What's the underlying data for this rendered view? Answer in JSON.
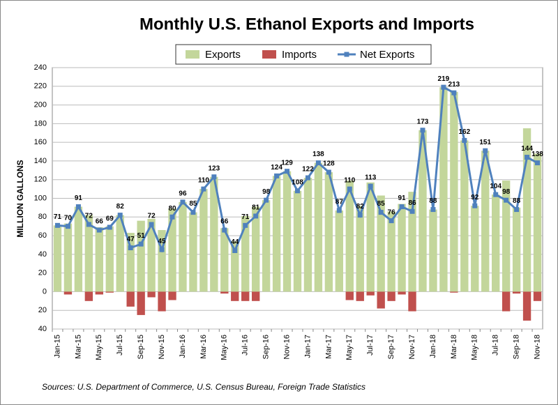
{
  "chart_data": {
    "type": "bar",
    "title": "Monthly U.S. Ethanol Exports and Imports",
    "y_label": "MILLION GALLONS",
    "source": "Sources: U.S. Department of Commerce, U.S. Census Bureau, Foreign Trade Statistics",
    "categories": [
      "Jan-15",
      null,
      "Mar-15",
      null,
      "May-15",
      null,
      "Jul-15",
      null,
      "Sep-15",
      null,
      "Nov-15",
      null,
      "Jan-16",
      null,
      "Mar-16",
      null,
      "May-16",
      null,
      "Jul-16",
      null,
      "Sep-16",
      null,
      "Nov-16",
      null,
      "Jan-17",
      null,
      "Mar-17",
      null,
      "May-17",
      null,
      "Jul-17",
      null,
      "Sep-17",
      null,
      "Nov-17",
      null,
      "Jan-18",
      null,
      "Mar-18",
      null,
      "May-18",
      null,
      "Jul-18",
      null,
      "Sep-18",
      null,
      "Nov-18"
    ],
    "series": [
      {
        "name": "Exports",
        "type": "bar",
        "color": "#c3d69b",
        "values": [
          71,
          73,
          91,
          82,
          69,
          70,
          82,
          63,
          76,
          78,
          66,
          89,
          96,
          85,
          110,
          123,
          68,
          54,
          81,
          91,
          98,
          124,
          129,
          108,
          122,
          138,
          128,
          87,
          119,
          92,
          117,
          103,
          86,
          94,
          107,
          173,
          88,
          219,
          214,
          162,
          92,
          151,
          104,
          119,
          90,
          175,
          148
        ]
      },
      {
        "name": "Imports",
        "type": "bar",
        "color": "#c0504d",
        "values": [
          0,
          -3,
          0,
          -10,
          -3,
          -1,
          0,
          -16,
          -25,
          -6,
          -21,
          -9,
          0,
          0,
          0,
          0,
          -2,
          -10,
          -10,
          -10,
          0,
          0,
          0,
          0,
          0,
          0,
          0,
          0,
          -9,
          -10,
          -4,
          -18,
          -10,
          -3,
          -21,
          0,
          0,
          0,
          -1,
          0,
          0,
          0,
          0,
          -21,
          -2,
          -31,
          -10
        ]
      },
      {
        "name": "Net Exports",
        "type": "line",
        "color": "#4f81bd",
        "values": [
          71,
          70,
          91,
          72,
          66,
          69,
          82,
          47,
          51,
          72,
          45,
          80,
          96,
          85,
          110,
          123,
          66,
          44,
          71,
          81,
          98,
          124,
          129,
          108,
          122,
          138,
          128,
          87,
          110,
          82,
          113,
          85,
          76,
          91,
          86,
          173,
          88,
          219,
          213,
          162,
          92,
          151,
          104,
          98,
          88,
          144,
          138
        ]
      }
    ],
    "ylim": [
      -40,
      240
    ],
    "yticks": [
      {
        "value": -40,
        "label": "40"
      },
      {
        "value": -20,
        "label": "20"
      },
      0,
      20,
      40,
      60,
      80,
      100,
      120,
      140,
      160,
      180,
      200,
      220,
      240
    ],
    "grid": true,
    "legend": "top"
  }
}
